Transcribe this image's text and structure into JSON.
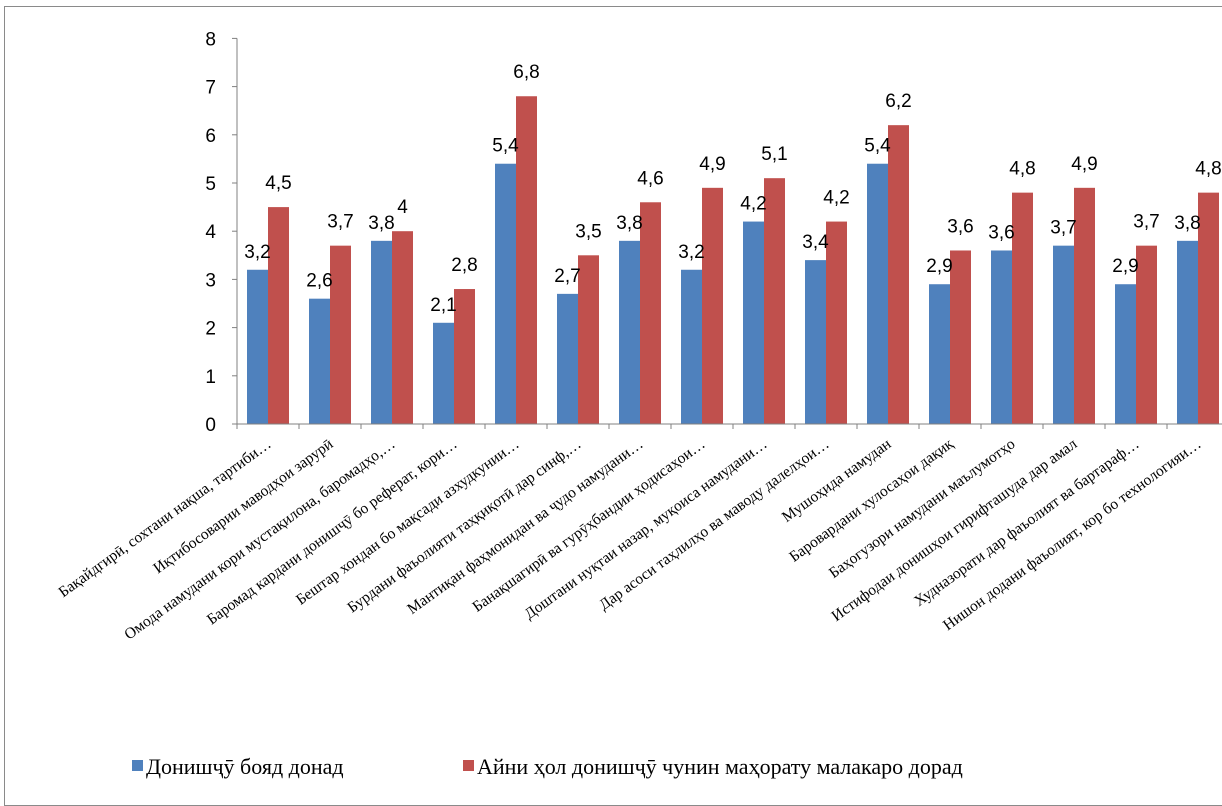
{
  "chart_data": {
    "type": "bar",
    "categories": [
      "Бақайдгирӣ, сохтани нақша, тартиби…",
      "Иқтибосоварии маводҳои зарурӣ",
      "Омода намудани кори мустақилона, баромадҳо,…",
      "Баромад кардани донишҷӯ бо реферат, кори…",
      "Бештар хондан бо мақсади азхудкунии…",
      "Бурдани фаъолияти таҳқиқотӣ дар синф,…",
      "Мантиқан фаҳмонидан ва ҷудо намудани…",
      "Банақшагирӣ ва гурӯҳбандии ҳодисаҳои…",
      "Доштани нуқтаи назар, муқоиса намудани…",
      "Дар асоси таҳлилҳо ва маводу далелҳои…",
      "Мушоҳида намудан",
      "Баровардани хулосаҳои дақиқ",
      "Баҳогузори намудани маълумотҳо",
      "Истифодаи донишҳои гирифташуда дар амал",
      "Худназорати дар фаъолият ва бартараф…",
      "Нишон додани фаъолият, кор бо технологияи…"
    ],
    "series": [
      {
        "name": "Донишҷӯ бояд донад",
        "values": [
          3.2,
          2.6,
          3.8,
          2.1,
          5.4,
          2.7,
          3.8,
          3.2,
          4.2,
          3.4,
          5.4,
          2.9,
          3.6,
          3.7,
          2.9,
          3.8
        ],
        "labels": [
          "3,2",
          "2,6",
          "3,8",
          "2,1",
          "5,4",
          "2,7",
          "3,8",
          "3,2",
          "4,2",
          "3,4",
          "5,4",
          "2,9",
          "3,6",
          "3,7",
          "2,9",
          "3,8"
        ],
        "color": "#4F81BD"
      },
      {
        "name": "Айни ҳол донишҷӯ чунин маҳорату малакаро дорад",
        "values": [
          4.5,
          3.7,
          4,
          2.8,
          6.8,
          3.5,
          4.6,
          4.9,
          5.1,
          4.2,
          6.2,
          3.6,
          4.8,
          4.9,
          3.7,
          4.8
        ],
        "labels": [
          "4,5",
          "3,7",
          "4",
          "2,8",
          "6,8",
          "3,5",
          "4,6",
          "4,9",
          "5,1",
          "4,2",
          "6,2",
          "3,6",
          "4,8",
          "4,9",
          "3,7",
          "4,8"
        ],
        "color": "#C0504D"
      }
    ],
    "yticks": [
      "0",
      "1",
      "2",
      "3",
      "4",
      "5",
      "6",
      "7",
      "8"
    ],
    "ylim": [
      0,
      8
    ],
    "grid": false,
    "legend_position": "bottom"
  }
}
